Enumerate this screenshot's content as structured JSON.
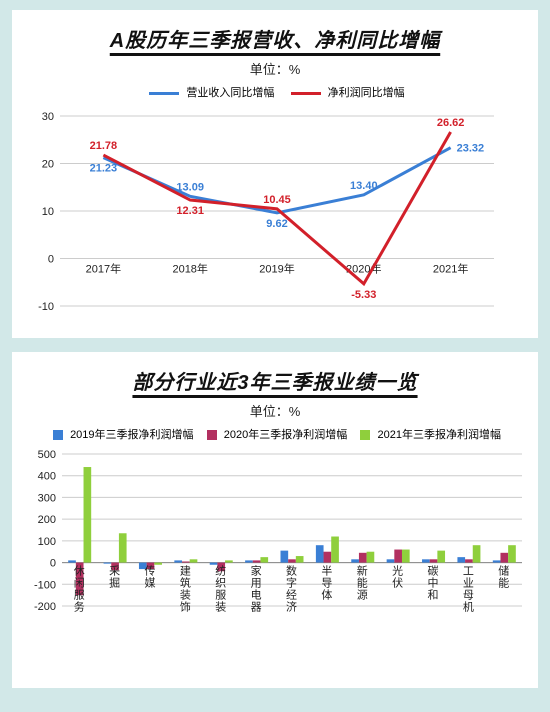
{
  "colors": {
    "page_bg": "#d2e8e8",
    "panel_bg": "#ffffff",
    "grid": "#cccccc",
    "axis": "#888888"
  },
  "chart1": {
    "type": "line",
    "title": "A股历年三季报营收、净利同比增幅",
    "unit": "单位：%",
    "legend": [
      {
        "label": "营业收入同比增幅",
        "color": "#3a7fd5"
      },
      {
        "label": "净利润同比增幅",
        "color": "#d2202a"
      }
    ],
    "categories": [
      "2017年",
      "2018年",
      "2019年",
      "2020年",
      "2021年"
    ],
    "series": [
      {
        "name": "营业收入同比增幅",
        "color": "#3a7fd5",
        "width": 3,
        "values": [
          21.23,
          13.09,
          9.62,
          13.4,
          23.32
        ],
        "label_pos": [
          "below",
          "above",
          "below",
          "above",
          "right"
        ]
      },
      {
        "name": "净利润同比增幅",
        "color": "#d2202a",
        "width": 3,
        "values": [
          21.78,
          12.31,
          10.45,
          -5.33,
          26.62
        ],
        "label_pos": [
          "above",
          "below",
          "above",
          "below",
          "above"
        ]
      }
    ],
    "ylim": [
      -10,
      30
    ],
    "ytick_step": 10,
    "title_fontsize": 20,
    "unit_fontsize": 13,
    "label_fontsize": 11
  },
  "chart2": {
    "type": "bar",
    "title": "部分行业近3年三季报业绩一览",
    "unit": "单位：%",
    "legend": [
      {
        "label": "2019年三季报净利润增幅",
        "color": "#3a7fd5"
      },
      {
        "label": "2020年三季报净利润增幅",
        "color": "#b23060"
      },
      {
        "label": "2021年三季报净利润增幅",
        "color": "#8fcf3c"
      }
    ],
    "categories": [
      "休闲服务",
      "采掘",
      "传媒",
      "建筑装饰",
      "纺织服装",
      "家用电器",
      "数字经济",
      "半导体",
      "新能源",
      "光伏",
      "碳中和",
      "工业母机",
      "储能"
    ],
    "series": [
      {
        "name": "2019",
        "color": "#3a7fd5",
        "values": [
          10,
          -5,
          -30,
          10,
          -10,
          10,
          55,
          80,
          15,
          15,
          15,
          25,
          10
        ]
      },
      {
        "name": "2020",
        "color": "#b23060",
        "values": [
          -150,
          -35,
          -30,
          5,
          -40,
          10,
          15,
          50,
          45,
          60,
          15,
          15,
          45
        ]
      },
      {
        "name": "2021",
        "color": "#8fcf3c",
        "values": [
          440,
          135,
          -10,
          15,
          10,
          25,
          30,
          120,
          50,
          60,
          55,
          80,
          80
        ]
      }
    ],
    "ylim": [
      -200,
      500
    ],
    "ytick_step": 100,
    "bar_group_width": 0.65,
    "title_fontsize": 20,
    "unit_fontsize": 13,
    "label_fontsize": 11
  }
}
